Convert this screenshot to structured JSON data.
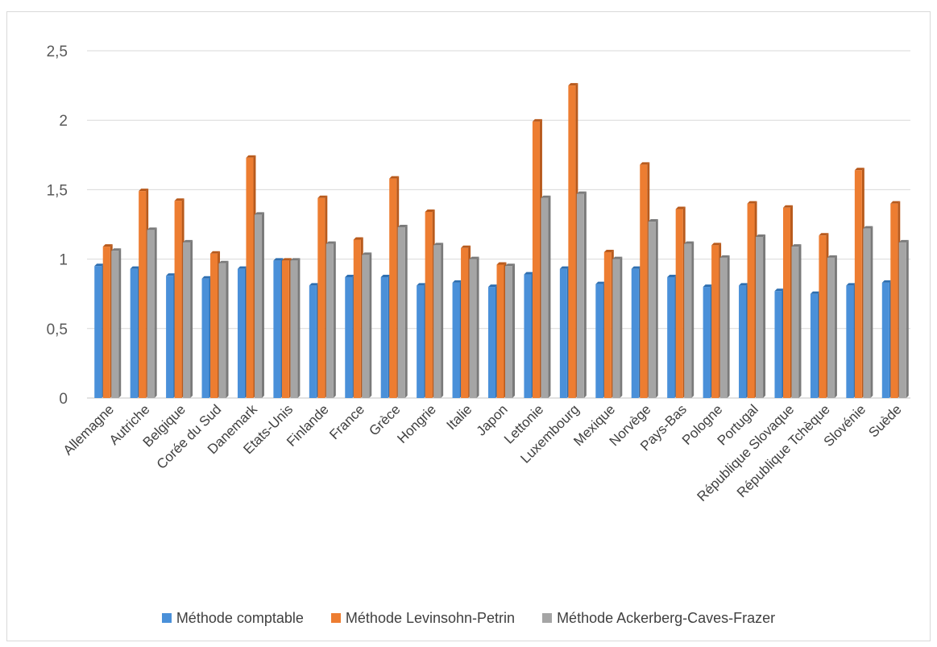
{
  "chart_data": {
    "type": "bar",
    "categories": [
      "Allemagne",
      "Autriche",
      "Belgique",
      "Corée du Sud",
      "Danemark",
      "Etats-Unis",
      "Finlande",
      "France",
      "Grèce",
      "Hongrie",
      "Italie",
      "Japon",
      "Lettonie",
      "Luxembourg",
      "Mexique",
      "Norvège",
      "Pays-Bas",
      "Pologne",
      "Portugal",
      "République Slovaque",
      "République Tchèque",
      "Slovénie",
      "Suède"
    ],
    "series": [
      {
        "name": "Méthode comptable",
        "color": "#4a90d9",
        "values": [
          0.95,
          0.93,
          0.88,
          0.86,
          0.93,
          0.99,
          0.81,
          0.87,
          0.87,
          0.81,
          0.83,
          0.8,
          0.89,
          0.93,
          0.82,
          0.93,
          0.87,
          0.8,
          0.81,
          0.77,
          0.75,
          0.81,
          0.83
        ]
      },
      {
        "name": "Méthode Levinsohn-Petrin",
        "color": "#ed7d31",
        "values": [
          1.09,
          1.49,
          1.42,
          1.04,
          1.73,
          0.99,
          1.44,
          1.14,
          1.58,
          1.34,
          1.08,
          0.96,
          1.99,
          2.25,
          1.05,
          1.68,
          1.36,
          1.1,
          1.4,
          1.37,
          1.17,
          1.64,
          1.4
        ]
      },
      {
        "name": "Méthode Ackerberg-Caves-Frazer",
        "color": "#a5a5a5",
        "values": [
          1.06,
          1.21,
          1.12,
          0.97,
          1.32,
          0.99,
          1.11,
          1.03,
          1.23,
          1.1,
          1.0,
          0.95,
          1.44,
          1.47,
          1.0,
          1.27,
          1.11,
          1.01,
          1.16,
          1.09,
          1.01,
          1.22,
          1.12
        ]
      }
    ],
    "y_ticks": [
      "0",
      "0,5",
      "1",
      "1,5",
      "2",
      "2,5"
    ],
    "ylim": [
      0,
      2.5
    ],
    "grid": true,
    "legend_position": "bottom"
  }
}
